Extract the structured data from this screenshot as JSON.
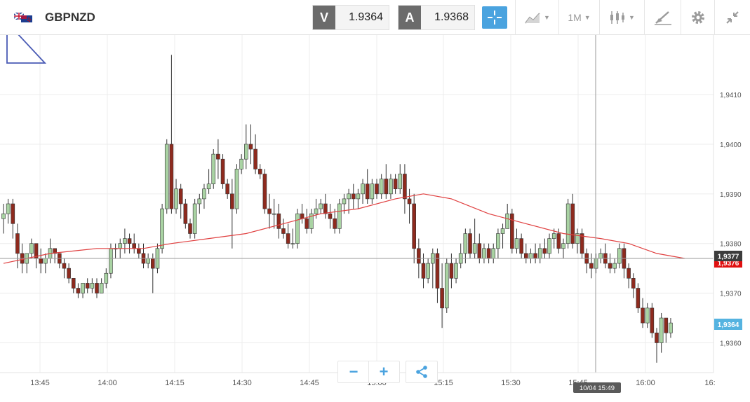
{
  "header": {
    "symbol": "GBPNZD",
    "flag_icon": "gb-nz-flag-icon",
    "sell": {
      "tag": "V",
      "value": "1.9364"
    },
    "buy": {
      "tag": "A",
      "value": "1.9368"
    },
    "timeframe": "1M"
  },
  "colors": {
    "up": "#a9d3a3",
    "down": "#8e2a1e",
    "ma": "#e04040",
    "grid": "#ececec",
    "accent": "#4aa3df",
    "ask_label_bg": "#3c3c3c",
    "bid_label_bg": "#55b3e0",
    "red_label_bg": "#e01010"
  },
  "price_axis": {
    "labels": [
      "1,9410",
      "1,9400",
      "1,9390",
      "1,9380",
      "1,9370",
      "1,9360"
    ],
    "ask_label": "1,9377",
    "red_label": "1,9376",
    "bid_label": "1,9364"
  },
  "time_axis": {
    "labels": [
      "13:45",
      "14:00",
      "14:15",
      "14:30",
      "14:45",
      "15:00",
      "15:15",
      "15:30",
      "15:45",
      "16:00",
      "16:"
    ],
    "crosshair_label": "10/04 15:49"
  },
  "zoom": {
    "minus": "−",
    "plus": "+"
  },
  "chart_data": {
    "type": "candlestick",
    "instrument": "GBPNZD",
    "timeframe": "1M",
    "ylim": [
      1.9354,
      1.9422
    ],
    "x_ticks": [
      "13:45",
      "14:00",
      "14:15",
      "14:30",
      "14:45",
      "15:00",
      "15:15",
      "15:30",
      "15:45",
      "16:00"
    ],
    "candles": [
      [
        1.9385,
        1.9388,
        1.9382,
        1.9386
      ],
      [
        1.9386,
        1.9389,
        1.9384,
        1.9388
      ],
      [
        1.9388,
        1.9389,
        1.9381,
        1.9384
      ],
      [
        1.9382,
        1.9384,
        1.9375,
        1.9378
      ],
      [
        1.9378,
        1.938,
        1.9374,
        1.9376
      ],
      [
        1.9376,
        1.9378,
        1.9374,
        1.9378
      ],
      [
        1.9378,
        1.9381,
        1.9377,
        1.938
      ],
      [
        1.938,
        1.938,
        1.9375,
        1.9377
      ],
      [
        1.9377,
        1.9379,
        1.9374,
        1.9376
      ],
      [
        1.9376,
        1.9378,
        1.9374,
        1.9377
      ],
      [
        1.9377,
        1.9381,
        1.9376,
        1.9379
      ],
      [
        1.9379,
        1.9379,
        1.9376,
        1.9378
      ],
      [
        1.9378,
        1.9378,
        1.9375,
        1.9376
      ],
      [
        1.9376,
        1.9377,
        1.9373,
        1.9375
      ],
      [
        1.9375,
        1.9376,
        1.9372,
        1.9373
      ],
      [
        1.9373,
        1.9373,
        1.937,
        1.9371
      ],
      [
        1.9371,
        1.9372,
        1.9369,
        1.937
      ],
      [
        1.937,
        1.9372,
        1.9369,
        1.9372
      ],
      [
        1.9372,
        1.9373,
        1.937,
        1.9371
      ],
      [
        1.9371,
        1.9373,
        1.937,
        1.9372
      ],
      [
        1.9372,
        1.9373,
        1.9369,
        1.937
      ],
      [
        1.937,
        1.9373,
        1.937,
        1.9372
      ],
      [
        1.9372,
        1.9375,
        1.9371,
        1.9374
      ],
      [
        1.9374,
        1.938,
        1.9373,
        1.9379
      ],
      [
        1.9379,
        1.938,
        1.9377,
        1.9379
      ],
      [
        1.9379,
        1.9381,
        1.9377,
        1.938
      ],
      [
        1.938,
        1.9383,
        1.9378,
        1.9381
      ],
      [
        1.9381,
        1.9382,
        1.9378,
        1.938
      ],
      [
        1.938,
        1.9382,
        1.9378,
        1.9379
      ],
      [
        1.9379,
        1.938,
        1.9377,
        1.9378
      ],
      [
        1.9378,
        1.938,
        1.9375,
        1.9376
      ],
      [
        1.9376,
        1.9378,
        1.9375,
        1.9377
      ],
      [
        1.9377,
        1.9378,
        1.937,
        1.9375
      ],
      [
        1.9375,
        1.938,
        1.9374,
        1.9379
      ],
      [
        1.9379,
        1.9388,
        1.9378,
        1.9387
      ],
      [
        1.9387,
        1.9401,
        1.9386,
        1.94
      ],
      [
        1.94,
        1.9418,
        1.9386,
        1.9387
      ],
      [
        1.9387,
        1.9393,
        1.9386,
        1.9391
      ],
      [
        1.9391,
        1.9392,
        1.9385,
        1.9388
      ],
      [
        1.9388,
        1.9389,
        1.9383,
        1.9384
      ],
      [
        1.9384,
        1.9385,
        1.9381,
        1.9382
      ],
      [
        1.9382,
        1.9389,
        1.9381,
        1.9388
      ],
      [
        1.9388,
        1.939,
        1.9386,
        1.9389
      ],
      [
        1.9389,
        1.9392,
        1.9387,
        1.9391
      ],
      [
        1.9391,
        1.9395,
        1.939,
        1.9392
      ],
      [
        1.9392,
        1.9399,
        1.9391,
        1.9398
      ],
      [
        1.9398,
        1.9401,
        1.9393,
        1.9397
      ],
      [
        1.9397,
        1.9398,
        1.9391,
        1.9392
      ],
      [
        1.9392,
        1.9393,
        1.9389,
        1.939
      ],
      [
        1.939,
        1.9393,
        1.9379,
        1.9387
      ],
      [
        1.9387,
        1.9396,
        1.9386,
        1.9395
      ],
      [
        1.9395,
        1.9398,
        1.9394,
        1.9397
      ],
      [
        1.9397,
        1.9404,
        1.9395,
        1.94
      ],
      [
        1.94,
        1.9404,
        1.9396,
        1.9399
      ],
      [
        1.9399,
        1.9402,
        1.9394,
        1.9395
      ],
      [
        1.9395,
        1.9396,
        1.9393,
        1.9394
      ],
      [
        1.9394,
        1.9395,
        1.9386,
        1.9387
      ],
      [
        1.9387,
        1.939,
        1.9383,
        1.9386
      ],
      [
        1.9386,
        1.9389,
        1.9383,
        1.9386
      ],
      [
        1.9386,
        1.9388,
        1.9381,
        1.9383
      ],
      [
        1.9383,
        1.9385,
        1.9381,
        1.9382
      ],
      [
        1.9382,
        1.9384,
        1.9379,
        1.938
      ],
      [
        1.938,
        1.9383,
        1.9379,
        1.938
      ],
      [
        1.938,
        1.9387,
        1.9379,
        1.9386
      ],
      [
        1.9386,
        1.9388,
        1.9384,
        1.9385
      ],
      [
        1.9385,
        1.9387,
        1.9382,
        1.9383
      ],
      [
        1.9383,
        1.9387,
        1.9382,
        1.9386
      ],
      [
        1.9386,
        1.9389,
        1.9385,
        1.9387
      ],
      [
        1.9387,
        1.9389,
        1.9386,
        1.9388
      ],
      [
        1.9388,
        1.939,
        1.9385,
        1.9386
      ],
      [
        1.9386,
        1.9388,
        1.9383,
        1.9385
      ],
      [
        1.9385,
        1.9387,
        1.9382,
        1.9383
      ],
      [
        1.9383,
        1.9389,
        1.9382,
        1.9388
      ],
      [
        1.9388,
        1.939,
        1.9386,
        1.9389
      ],
      [
        1.9389,
        1.9391,
        1.9386,
        1.939
      ],
      [
        1.939,
        1.9392,
        1.9387,
        1.9389
      ],
      [
        1.9389,
        1.9391,
        1.9387,
        1.939
      ],
      [
        1.939,
        1.9393,
        1.9388,
        1.9392
      ],
      [
        1.9392,
        1.9395,
        1.9388,
        1.9389
      ],
      [
        1.9389,
        1.9393,
        1.9388,
        1.9392
      ],
      [
        1.9392,
        1.9393,
        1.9389,
        1.939
      ],
      [
        1.939,
        1.9394,
        1.9389,
        1.9393
      ],
      [
        1.9393,
        1.9396,
        1.9389,
        1.939
      ],
      [
        1.939,
        1.9394,
        1.9389,
        1.9393
      ],
      [
        1.9393,
        1.9394,
        1.939,
        1.9391
      ],
      [
        1.9391,
        1.9396,
        1.939,
        1.9394
      ],
      [
        1.9394,
        1.9396,
        1.9386,
        1.9389
      ],
      [
        1.9389,
        1.9391,
        1.9384,
        1.9388
      ],
      [
        1.9388,
        1.939,
        1.9376,
        1.9379
      ],
      [
        1.9379,
        1.9381,
        1.9373,
        1.9376
      ],
      [
        1.9376,
        1.9378,
        1.9371,
        1.9373
      ],
      [
        1.9373,
        1.9377,
        1.9372,
        1.9376
      ],
      [
        1.9376,
        1.9379,
        1.9371,
        1.9378
      ],
      [
        1.9378,
        1.9379,
        1.9368,
        1.9371
      ],
      [
        1.9371,
        1.9376,
        1.9363,
        1.9367
      ],
      [
        1.9367,
        1.9377,
        1.9366,
        1.9376
      ],
      [
        1.9376,
        1.9378,
        1.9371,
        1.9373
      ],
      [
        1.9373,
        1.9377,
        1.9372,
        1.9376
      ],
      [
        1.9376,
        1.938,
        1.9375,
        1.9378
      ],
      [
        1.9378,
        1.9383,
        1.9376,
        1.9382
      ],
      [
        1.9382,
        1.9383,
        1.9377,
        1.9378
      ],
      [
        1.9378,
        1.9385,
        1.9377,
        1.938
      ],
      [
        1.938,
        1.9382,
        1.9376,
        1.9377
      ],
      [
        1.9377,
        1.938,
        1.9376,
        1.9379
      ],
      [
        1.9379,
        1.938,
        1.9376,
        1.9377
      ],
      [
        1.9377,
        1.938,
        1.9376,
        1.9379
      ],
      [
        1.9379,
        1.9383,
        1.9377,
        1.9382
      ],
      [
        1.9382,
        1.9384,
        1.9379,
        1.9383
      ],
      [
        1.9383,
        1.9388,
        1.9383,
        1.9386
      ],
      [
        1.9386,
        1.9387,
        1.9378,
        1.9379
      ],
      [
        1.9379,
        1.9383,
        1.9378,
        1.9381
      ],
      [
        1.9381,
        1.9382,
        1.9377,
        1.9378
      ],
      [
        1.9378,
        1.938,
        1.9376,
        1.9377
      ],
      [
        1.9377,
        1.9379,
        1.9376,
        1.9378
      ],
      [
        1.9378,
        1.938,
        1.9376,
        1.9377
      ],
      [
        1.9377,
        1.938,
        1.9376,
        1.9379
      ],
      [
        1.9379,
        1.9381,
        1.9377,
        1.9378
      ],
      [
        1.9378,
        1.9382,
        1.9377,
        1.9381
      ],
      [
        1.9381,
        1.9383,
        1.9379,
        1.9382
      ],
      [
        1.9382,
        1.9383,
        1.9378,
        1.9379
      ],
      [
        1.9379,
        1.9381,
        1.9377,
        1.938
      ],
      [
        1.938,
        1.9389,
        1.9379,
        1.9388
      ],
      [
        1.9388,
        1.939,
        1.9379,
        1.938
      ],
      [
        1.938,
        1.9383,
        1.9378,
        1.9382
      ],
      [
        1.9382,
        1.9383,
        1.9377,
        1.9378
      ],
      [
        1.9378,
        1.9379,
        1.9374,
        1.9376
      ],
      [
        1.9376,
        1.9378,
        1.9373,
        1.9375
      ],
      [
        1.9375,
        1.9378,
        1.9374,
        1.9377
      ],
      [
        1.9377,
        1.9379,
        1.9376,
        1.9378
      ],
      [
        1.9378,
        1.938,
        1.9375,
        1.9376
      ],
      [
        1.9376,
        1.9378,
        1.9374,
        1.9375
      ],
      [
        1.9375,
        1.9377,
        1.9374,
        1.9376
      ],
      [
        1.9376,
        1.938,
        1.9375,
        1.9379
      ],
      [
        1.9379,
        1.938,
        1.9373,
        1.9375
      ],
      [
        1.9375,
        1.9376,
        1.9371,
        1.9373
      ],
      [
        1.9373,
        1.9374,
        1.9369,
        1.9371
      ],
      [
        1.9371,
        1.9372,
        1.9366,
        1.9367
      ],
      [
        1.9367,
        1.9369,
        1.9363,
        1.9364
      ],
      [
        1.9364,
        1.9368,
        1.9363,
        1.9367
      ],
      [
        1.9367,
        1.9368,
        1.9361,
        1.9362
      ],
      [
        1.9362,
        1.9363,
        1.9356,
        1.936
      ],
      [
        1.936,
        1.9366,
        1.9358,
        1.9365
      ],
      [
        1.9365,
        1.9365,
        1.936,
        1.9362
      ],
      [
        1.9362,
        1.9365,
        1.9361,
        1.9364
      ]
    ],
    "moving_average": [
      [
        0,
        1.9376
      ],
      [
        5,
        1.9377
      ],
      [
        10,
        1.9378
      ],
      [
        20,
        1.9379
      ],
      [
        30,
        1.9379
      ],
      [
        36,
        1.938
      ],
      [
        44,
        1.9381
      ],
      [
        52,
        1.9382
      ],
      [
        60,
        1.9384
      ],
      [
        68,
        1.9386
      ],
      [
        76,
        1.9387
      ],
      [
        84,
        1.9389
      ],
      [
        90,
        1.939
      ],
      [
        96,
        1.9389
      ],
      [
        104,
        1.9386
      ],
      [
        112,
        1.9384
      ],
      [
        120,
        1.9382
      ],
      [
        128,
        1.9381
      ],
      [
        134,
        1.938
      ],
      [
        140,
        1.9378
      ],
      [
        146,
        1.9377
      ]
    ],
    "ask_line": 1.9377,
    "bid": 1.9364,
    "grid": true
  }
}
